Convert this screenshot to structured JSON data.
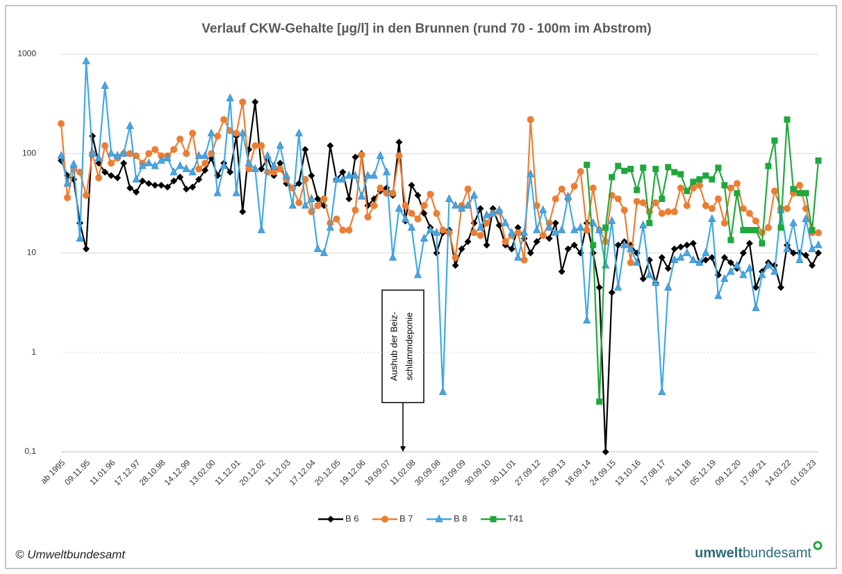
{
  "chart_data": {
    "type": "line",
    "title": "Verlauf CKW-Gehalte [µg/l] in den Brunnen (rund 70 - 100m im Abstrom)",
    "categories": [
      "ab 1995",
      null,
      null,
      null,
      "09.11.95",
      null,
      null,
      null,
      "11.01.96",
      null,
      null,
      null,
      "17.12.97",
      null,
      null,
      null,
      "28.10.98",
      null,
      null,
      null,
      "14.12.99",
      null,
      null,
      null,
      "13.02.00",
      null,
      null,
      null,
      "11.12.01",
      null,
      null,
      null,
      "20.12.02",
      null,
      null,
      null,
      "11.12.03",
      null,
      null,
      null,
      "17.12.04",
      null,
      null,
      null,
      "20.12.05",
      null,
      null,
      null,
      "19.12.06",
      null,
      null,
      null,
      "19.09.07",
      null,
      null,
      null,
      "11.02.08",
      null,
      null,
      null,
      "30.09.08",
      null,
      null,
      null,
      "23.09.09",
      null,
      null,
      null,
      "30.09.10",
      null,
      null,
      null,
      "30.11.01",
      null,
      null,
      null,
      "27.09.12",
      null,
      null,
      null,
      "25.09.13",
      null,
      null,
      null,
      "18.09.14",
      null,
      null,
      null,
      "24.09.15",
      null,
      null,
      null,
      "13.10.16",
      null,
      null,
      null,
      "17.08.17",
      null,
      null,
      null,
      "26.11.18",
      null,
      null,
      null,
      "05.12.19",
      null,
      null,
      null,
      "09.12.20",
      null,
      null,
      null,
      "17.06.21",
      null,
      null,
      null,
      "14.03.22",
      null,
      null,
      null,
      "01.03.23",
      null
    ],
    "series": [
      {
        "name": "B 6",
        "color": "#000000",
        "marker": "diamond",
        "values": [
          85,
          60,
          55,
          20,
          11,
          150,
          80,
          65,
          60,
          57,
          80,
          45,
          41,
          53,
          50,
          48,
          48,
          46,
          53,
          58,
          44,
          46,
          55,
          68,
          90,
          60,
          80,
          65,
          150,
          26,
          110,
          330,
          70,
          90,
          60,
          80,
          50,
          45,
          50,
          110,
          60,
          35,
          30,
          120,
          55,
          65,
          35,
          92,
          100,
          30,
          35,
          42,
          45,
          38,
          130,
          21,
          48,
          38,
          25,
          18,
          10,
          16,
          17,
          7.5,
          11,
          13,
          20,
          28,
          12,
          28,
          19,
          12,
          11,
          18,
          14,
          10,
          13,
          15,
          14,
          20,
          6.5,
          11,
          12,
          10,
          20,
          10,
          4.5,
          0.1,
          4,
          12,
          13,
          12,
          10,
          5.5,
          8.5,
          5,
          9,
          7,
          11,
          11.5,
          12,
          12.5,
          8,
          8.5,
          9,
          6,
          9,
          8,
          7,
          10,
          12.5,
          4.5,
          6.5,
          8,
          7.5,
          4.5,
          12,
          10,
          10,
          9.5,
          7.5,
          10
        ]
      },
      {
        "name": "B 7",
        "color": "#ED7D31",
        "marker": "circle",
        "values": [
          200,
          36,
          70,
          65,
          38,
          100,
          57,
          120,
          80,
          90,
          100,
          100,
          95,
          80,
          100,
          110,
          95,
          95,
          110,
          140,
          100,
          160,
          70,
          80,
          100,
          150,
          220,
          170,
          160,
          330,
          70,
          120,
          120,
          65,
          65,
          70,
          55,
          45,
          32,
          55,
          26,
          30,
          35,
          20,
          22,
          17,
          17,
          27,
          97,
          23,
          30,
          45,
          40,
          40,
          95,
          30,
          25,
          22,
          30,
          39,
          25,
          17,
          16,
          9,
          30,
          44,
          16,
          15,
          20,
          25,
          26,
          13,
          15,
          16,
          8.5,
          220,
          30,
          15,
          20,
          35,
          44,
          35,
          47,
          66,
          17,
          45,
          17,
          13,
          38,
          35,
          27,
          8,
          33,
          32,
          26,
          32,
          25,
          26,
          26,
          45,
          30,
          45,
          48,
          30,
          28,
          35,
          20,
          45,
          50,
          28,
          25,
          21,
          16,
          18,
          42,
          28,
          28,
          40,
          48,
          28,
          16,
          16
        ]
      },
      {
        "name": "B 8",
        "color": "#3FA9E6",
        "marker": "triangle",
        "values": [
          95,
          50,
          78,
          14,
          850,
          100,
          90,
          480,
          100,
          95,
          100,
          190,
          55,
          75,
          80,
          75,
          85,
          90,
          65,
          75,
          70,
          65,
          95,
          95,
          160,
          40,
          75,
          360,
          40,
          160,
          80,
          70,
          17,
          95,
          75,
          120,
          60,
          30,
          160,
          30,
          35,
          11,
          10,
          18,
          55,
          55,
          60,
          60,
          37,
          60,
          60,
          95,
          65,
          9,
          28,
          22,
          18,
          6,
          14,
          17,
          16,
          0.4,
          35,
          30,
          28,
          30,
          38,
          18,
          24,
          25,
          27,
          20,
          16,
          9,
          16,
          62,
          17,
          27,
          18,
          16,
          17,
          37,
          17,
          18,
          2.1,
          20,
          17,
          7.5,
          21,
          4.5,
          12,
          11,
          8,
          19,
          6,
          5,
          0.4,
          4.5,
          8.5,
          9,
          10,
          8.5,
          8,
          10,
          22,
          3.7,
          5.5,
          6.5,
          7.5,
          6,
          7,
          2.8,
          6,
          7.5,
          6.5,
          27,
          11,
          20,
          8.5,
          22,
          11,
          12
        ]
      },
      {
        "name": "T41",
        "color": "#1FA83C",
        "marker": "square",
        "values": [
          null,
          null,
          null,
          null,
          null,
          null,
          null,
          null,
          null,
          null,
          null,
          null,
          null,
          null,
          null,
          null,
          null,
          null,
          null,
          null,
          null,
          null,
          null,
          null,
          null,
          null,
          null,
          null,
          null,
          null,
          null,
          null,
          null,
          null,
          null,
          null,
          null,
          null,
          null,
          null,
          null,
          null,
          null,
          null,
          null,
          null,
          null,
          null,
          null,
          null,
          null,
          null,
          null,
          null,
          null,
          null,
          null,
          null,
          null,
          null,
          null,
          null,
          null,
          null,
          null,
          null,
          null,
          null,
          null,
          null,
          null,
          null,
          null,
          null,
          null,
          null,
          null,
          null,
          null,
          null,
          null,
          null,
          null,
          null,
          77,
          12,
          0.32,
          18,
          58,
          75,
          67,
          70,
          43,
          72,
          20,
          70,
          35,
          73,
          65,
          62,
          42,
          52,
          55,
          60,
          55,
          72,
          48,
          13.5,
          40,
          17,
          17,
          17,
          12.5,
          75,
          135,
          18,
          220,
          44,
          40,
          40,
          17,
          85
        ]
      }
    ],
    "ylim": [
      0.1,
      1000
    ],
    "yticks": [
      1000,
      100,
      10,
      1,
      {
        "value": 0.1,
        "label": "0,1"
      }
    ],
    "log_scale": true,
    "grid": true,
    "legend": "bottom",
    "annotation": [
      "Aushub der Beiz-",
      "schlammdeponie"
    ]
  },
  "footer": {
    "copyright": "© Umweltbundesamt",
    "logo_bold": "umwelt",
    "logo_rest": "bundesamt"
  }
}
